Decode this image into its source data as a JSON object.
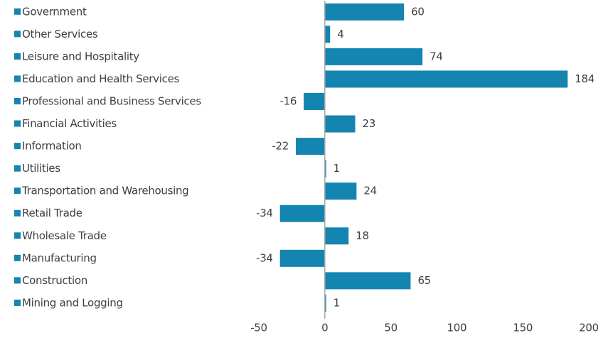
{
  "chart_data": {
    "type": "bar",
    "categories": [
      "Government",
      "Other Services",
      "Leisure and Hospitality",
      "Education and Health Services",
      "Professional and Business Services",
      "Financial Activities",
      "Information",
      "Utilities",
      "Transportation and Warehousing",
      "Retail Trade",
      "Wholesale Trade",
      "Manufacturing",
      "Construction",
      "Mining and Logging"
    ],
    "values": [
      60,
      4,
      74,
      184,
      -16,
      23,
      -22,
      1,
      24,
      -34,
      18,
      -34,
      65,
      1
    ],
    "color": "#1385b0",
    "xlim": [
      -50,
      200
    ],
    "xticks": [
      -50,
      0,
      50,
      100,
      150,
      200
    ],
    "grid": false
  }
}
